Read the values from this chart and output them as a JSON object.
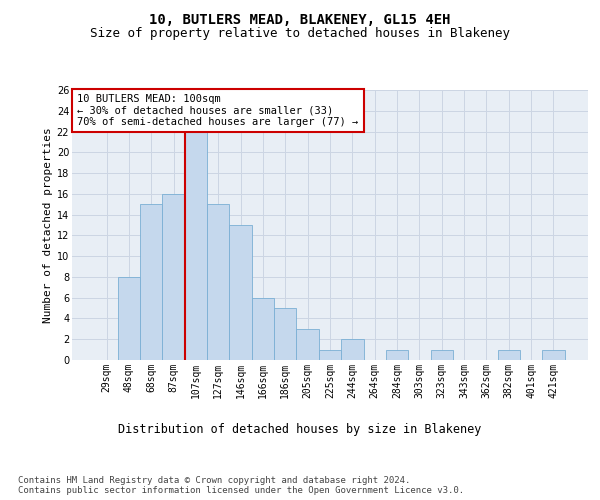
{
  "title1": "10, BUTLERS MEAD, BLAKENEY, GL15 4EH",
  "title2": "Size of property relative to detached houses in Blakeney",
  "xlabel": "Distribution of detached houses by size in Blakeney",
  "ylabel": "Number of detached properties",
  "categories": [
    "29sqm",
    "48sqm",
    "68sqm",
    "87sqm",
    "107sqm",
    "127sqm",
    "146sqm",
    "166sqm",
    "186sqm",
    "205sqm",
    "225sqm",
    "244sqm",
    "264sqm",
    "284sqm",
    "303sqm",
    "323sqm",
    "343sqm",
    "362sqm",
    "382sqm",
    "401sqm",
    "421sqm"
  ],
  "values": [
    0,
    8,
    15,
    16,
    22,
    15,
    13,
    6,
    5,
    3,
    1,
    2,
    0,
    1,
    0,
    1,
    0,
    0,
    1,
    0,
    1
  ],
  "bar_color": "#c5d8ed",
  "bar_edge_color": "#7aafd4",
  "vline_x": 3.5,
  "vline_color": "#cc0000",
  "annotation_text": "10 BUTLERS MEAD: 100sqm\n← 30% of detached houses are smaller (33)\n70% of semi-detached houses are larger (77) →",
  "annotation_box_color": "#ffffff",
  "annotation_box_edge_color": "#cc0000",
  "ylim": [
    0,
    26
  ],
  "yticks": [
    0,
    2,
    4,
    6,
    8,
    10,
    12,
    14,
    16,
    18,
    20,
    22,
    24,
    26
  ],
  "grid_color": "#ccd5e3",
  "background_color": "#e8eef5",
  "footer_text": "Contains HM Land Registry data © Crown copyright and database right 2024.\nContains public sector information licensed under the Open Government Licence v3.0.",
  "title1_fontsize": 10,
  "title2_fontsize": 9,
  "xlabel_fontsize": 8.5,
  "ylabel_fontsize": 8,
  "annotation_fontsize": 7.5,
  "footer_fontsize": 6.5,
  "tick_fontsize": 7
}
